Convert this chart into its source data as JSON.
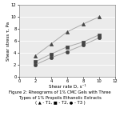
{
  "T1": {
    "x": [
      2,
      4,
      6,
      8,
      10
    ],
    "y": [
      3.5,
      5.5,
      7.5,
      8.8,
      10.0
    ],
    "marker": "^",
    "label": "▲ - T1"
  },
  "T2": {
    "x": [
      2,
      4,
      6,
      8,
      10
    ],
    "y": [
      2.5,
      3.8,
      5.0,
      5.8,
      7.0
    ],
    "marker": "s",
    "label": "■ - T2"
  },
  "T3": {
    "x": [
      2,
      4,
      6,
      8,
      10
    ],
    "y": [
      2.0,
      3.2,
      4.2,
      5.3,
      6.5
    ],
    "marker": "o",
    "label": "● - T3"
  },
  "xlabel": "Shear rate D, s⁻¹",
  "ylabel": "Shear stress τ, Pa",
  "xlim": [
    0,
    12
  ],
  "ylim": [
    0,
    12
  ],
  "xticks": [
    0,
    2,
    4,
    6,
    8,
    10,
    12
  ],
  "yticks": [
    0,
    2,
    4,
    6,
    8,
    10,
    12
  ],
  "line_color": "#aaaaaa",
  "marker_color": "#444444",
  "marker_size": 3,
  "linewidth": 0.7,
  "xlabel_fontsize": 4.0,
  "ylabel_fontsize": 4.0,
  "tick_fontsize": 3.8,
  "caption": "Figure 2: Rheograms of 1% CMC Gels with Three\nTypes of 1% Propolis Ethanolic Extracts\n( ▲ - T1, ■ - T2, ● - T3 )",
  "caption_fontsize": 3.8,
  "bg_color": "#ebebeb",
  "fig_bg": "#ffffff",
  "grid_color": "#ffffff",
  "grid_linewidth": 0.6
}
